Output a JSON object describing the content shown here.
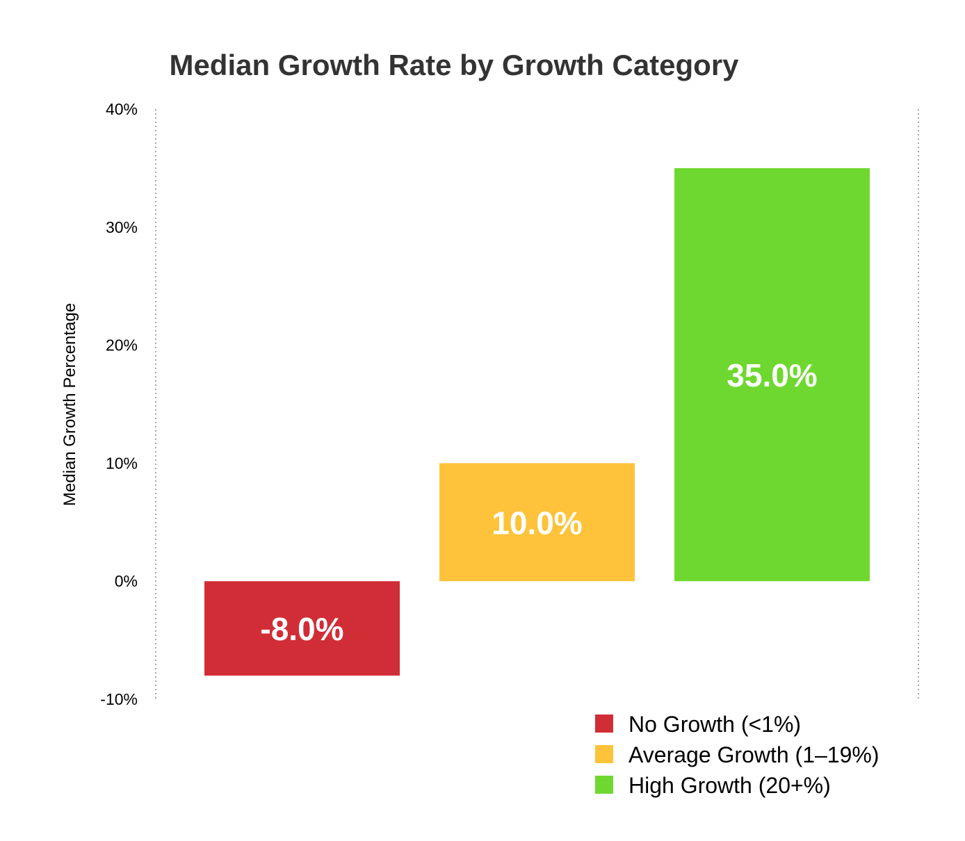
{
  "chart_data": {
    "type": "bar",
    "title": "Median Growth Rate by Growth Category",
    "xlabel": "",
    "ylabel": "Median Growth Percentage",
    "ylim": [
      -10,
      40
    ],
    "yticks": [
      -10,
      0,
      10,
      20,
      30,
      40
    ],
    "ytick_labels": [
      "-10%",
      "0%",
      "10%",
      "20%",
      "30%",
      "40%"
    ],
    "grid": false,
    "legend_position": "bottom-right",
    "categories": [
      "No Growth (<1%)",
      "Average Growth (1–19%)",
      "High Growth (20+%)"
    ],
    "values": [
      -8.0,
      10.0,
      35.0
    ],
    "data_labels": [
      "-8.0%",
      "10.0%",
      "35.0%"
    ],
    "colors": [
      "#d12d36",
      "#fec33a",
      "#6fd830"
    ],
    "legend": [
      {
        "label": "No Growth (<1%)",
        "color": "#d12d36"
      },
      {
        "label": "Average Growth (1–19%)",
        "color": "#fec33a"
      },
      {
        "label": "High Growth (20+%)",
        "color": "#6fd830"
      }
    ]
  }
}
